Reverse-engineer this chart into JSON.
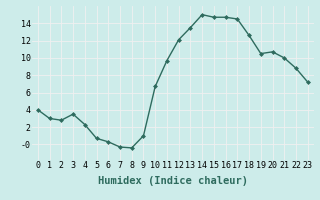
{
  "x": [
    0,
    1,
    2,
    3,
    4,
    5,
    6,
    7,
    8,
    9,
    10,
    11,
    12,
    13,
    14,
    15,
    16,
    17,
    18,
    19,
    20,
    21,
    22,
    23
  ],
  "y": [
    4.0,
    3.0,
    2.8,
    3.5,
    2.3,
    0.7,
    0.3,
    -0.3,
    -0.4,
    1.0,
    6.7,
    9.7,
    12.1,
    13.5,
    15.0,
    14.7,
    14.7,
    14.5,
    12.6,
    10.5,
    10.7,
    10.0,
    8.8,
    7.2
  ],
  "xlabel": "Humidex (Indice chaleur)",
  "xlim": [
    -0.5,
    23.5
  ],
  "ylim": [
    -1.8,
    16.0
  ],
  "yticks": [
    0,
    2,
    4,
    6,
    8,
    10,
    12,
    14
  ],
  "ytick_labels": [
    "-0",
    "2",
    "4",
    "6",
    "8",
    "10",
    "12",
    "14"
  ],
  "xticks": [
    0,
    1,
    2,
    3,
    4,
    5,
    6,
    7,
    8,
    9,
    10,
    11,
    12,
    13,
    14,
    15,
    16,
    17,
    18,
    19,
    20,
    21,
    22,
    23
  ],
  "line_color": "#2e6b5e",
  "marker": "D",
  "marker_size": 2.0,
  "bg_color": "#cdecea",
  "grid_color": "#f0f0f0",
  "xlabel_fontsize": 7.5,
  "tick_fontsize": 6.0,
  "linewidth": 1.0
}
